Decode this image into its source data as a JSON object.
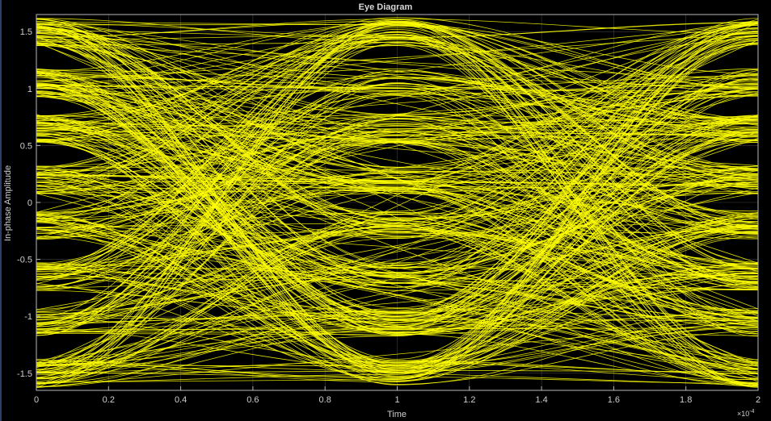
{
  "chart_data": {
    "type": "line",
    "title": "Eye Diagram",
    "xlabel": "Time",
    "ylabel": "In-phase Amplitude",
    "x_exponent_label": "×10",
    "x_exponent_power": "-4",
    "xlim": [
      0,
      2
    ],
    "ylim": [
      -1.65,
      1.65
    ],
    "x_ticks": [
      "0",
      "0.2",
      "0.4",
      "0.6",
      "0.8",
      "1",
      "1.2",
      "1.4",
      "1.6",
      "1.8",
      "2"
    ],
    "y_ticks": [
      "-1.5",
      "-1",
      "-0.5",
      "0",
      "0.5",
      "1",
      "1.5"
    ],
    "grid": true,
    "trace_color": "#ffff00",
    "background_color": "#000000",
    "levels": [
      -1.5,
      -1.05,
      -0.65,
      -0.2,
      0.2,
      0.65,
      1.05,
      1.5
    ]
  }
}
